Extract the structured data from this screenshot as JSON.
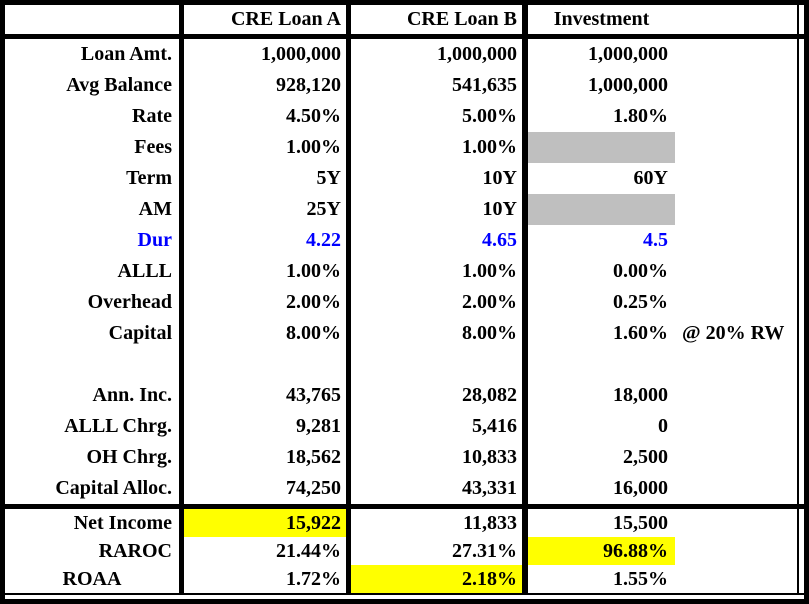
{
  "colors": {
    "highlight_yellow": "#ffff00",
    "shaded_gray": "#bfbfbf",
    "duration_blue": "#0000ff",
    "border_black": "#000000"
  },
  "header": {
    "corner": "",
    "columns": [
      "CRE Loan A",
      "CRE Loan B",
      "Investment"
    ]
  },
  "rows": [
    {
      "label": "Loan Amt.",
      "a": "1,000,000",
      "b": "1,000,000",
      "inv": "1,000,000"
    },
    {
      "label": "Avg Balance",
      "a": "928,120",
      "b": "541,635",
      "inv": "1,000,000"
    },
    {
      "label": "Rate",
      "a": "4.50%",
      "b": "5.00%",
      "inv": "1.80%"
    },
    {
      "label": "Fees",
      "a": "1.00%",
      "b": "1.00%",
      "inv": "",
      "inv_bg": "gray"
    },
    {
      "label": "Term",
      "a": "5Y",
      "b": "10Y",
      "inv": "60Y"
    },
    {
      "label": "AM",
      "a": "25Y",
      "b": "10Y",
      "inv": "",
      "inv_bg": "gray"
    },
    {
      "label": "Dur",
      "a": "4.22",
      "b": "4.65",
      "inv": "4.5",
      "color": "blue"
    },
    {
      "label": "ALLL",
      "a": "1.00%",
      "b": "1.00%",
      "inv": "0.00%"
    },
    {
      "label": "Overhead",
      "a": "2.00%",
      "b": "2.00%",
      "inv": "0.25%"
    },
    {
      "label": "Capital",
      "a": "8.00%",
      "b": "8.00%",
      "inv": "1.60%",
      "inv_note": "@ 20% RW"
    },
    {
      "label": "",
      "a": "",
      "b": "",
      "inv": ""
    },
    {
      "label": "Ann. Inc.",
      "a": "43,765",
      "b": "28,082",
      "inv": "18,000"
    },
    {
      "label": "ALLL Chrg.",
      "a": "9,281",
      "b": "5,416",
      "inv": "0"
    },
    {
      "label": "OH Chrg.",
      "a": "18,562",
      "b": "10,833",
      "inv": "2,500"
    },
    {
      "label": "Capital Alloc.",
      "a": "74,250",
      "b": "43,331",
      "inv": "16,000"
    }
  ],
  "summary": [
    {
      "label": "Net Income",
      "a": "15,922",
      "b": "11,833",
      "inv": "15,500",
      "a_bg": "yellow"
    },
    {
      "label": "RAROC",
      "a": "21.44%",
      "b": "27.31%",
      "inv": "96.88%",
      "inv_bg": "yellow"
    },
    {
      "label": "ROAA",
      "a": "1.72%",
      "b": "2.18%",
      "inv": "1.55%",
      "b_bg": "yellow",
      "label_align": "center"
    }
  ]
}
